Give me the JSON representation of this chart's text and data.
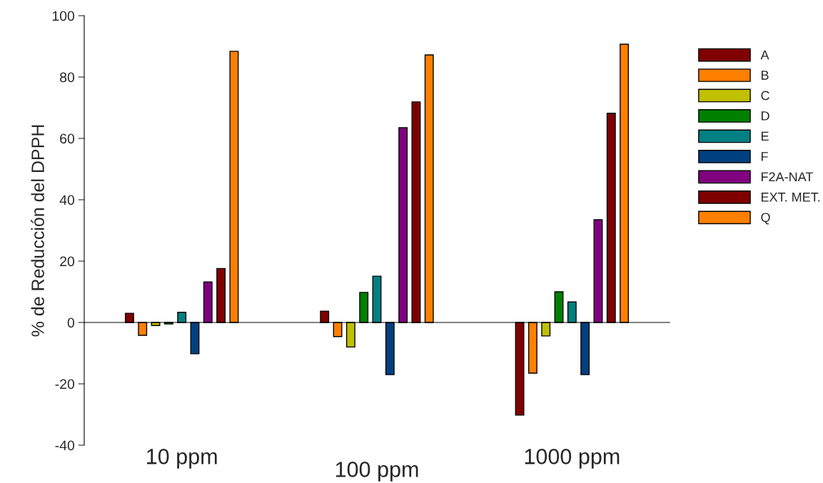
{
  "chart_data": {
    "type": "bar",
    "ylabel": "% de Reducción del DPPH",
    "categories": [
      "10 ppm",
      "100 ppm",
      "1000 ppm"
    ],
    "series": [
      {
        "name": "A",
        "color": "#800000",
        "values": [
          3.0,
          3.7,
          -30.2
        ]
      },
      {
        "name": "B",
        "color": "#ff8000",
        "values": [
          -4.2,
          -4.6,
          -16.5
        ]
      },
      {
        "name": "C",
        "color": "#c0c000",
        "values": [
          -1.0,
          -8.0,
          -4.4
        ]
      },
      {
        "name": "D",
        "color": "#008000",
        "values": [
          -0.5,
          9.8,
          10.0
        ]
      },
      {
        "name": "E",
        "color": "#008080",
        "values": [
          3.3,
          15.1,
          6.7
        ]
      },
      {
        "name": "F",
        "color": "#004080",
        "values": [
          -10.2,
          -17.0,
          -17.0
        ]
      },
      {
        "name": "F2A-NAT",
        "color": "#800080",
        "values": [
          13.2,
          63.5,
          33.5
        ]
      },
      {
        "name": "EXT. MET.",
        "color": "#800000",
        "values": [
          17.6,
          71.9,
          68.2
        ]
      },
      {
        "name": "Q",
        "color": "#ff8000",
        "values": [
          88.4,
          87.2,
          90.7
        ]
      }
    ],
    "ylim": [
      -40,
      100
    ],
    "yticks": [
      -40,
      -20,
      0,
      20,
      40,
      60,
      80,
      100
    ],
    "legend": "right"
  }
}
